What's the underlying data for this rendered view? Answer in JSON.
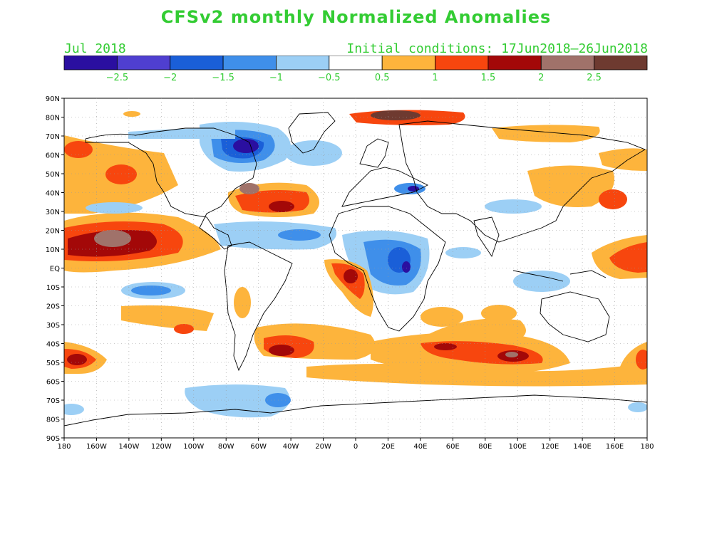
{
  "header": {
    "title": "CFSv2 monthly Normalized Anomalies",
    "month": "Jul 2018",
    "initial_conditions": "Initial conditions: 17Jun2018–26Jun2018"
  },
  "colorbar": {
    "colors": [
      "#2a0fa0",
      "#4f3fd0",
      "#1a5fd8",
      "#3f8fea",
      "#9ccff5",
      "#ffffff",
      "#fdb43c",
      "#f7460e",
      "#a30808",
      "#a0726a",
      "#6e3a30"
    ],
    "labels": [
      "−2.5",
      "−2",
      "−1.5",
      "−1",
      "−0.5",
      "0.5",
      "1",
      "1.5",
      "2",
      "2.5"
    ]
  },
  "map": {
    "lat_labels": [
      "90N",
      "80N",
      "70N",
      "60N",
      "50N",
      "40N",
      "30N",
      "20N",
      "10N",
      "EQ",
      "10S",
      "20S",
      "30S",
      "40S",
      "50S",
      "60S",
      "70S",
      "80S",
      "90S"
    ],
    "lon_labels": [
      "180",
      "160W",
      "140W",
      "120W",
      "100W",
      "80W",
      "60W",
      "40W",
      "20W",
      "0",
      "20E",
      "40E",
      "60E",
      "80E",
      "100E",
      "120E",
      "140E",
      "160E",
      "180"
    ]
  }
}
